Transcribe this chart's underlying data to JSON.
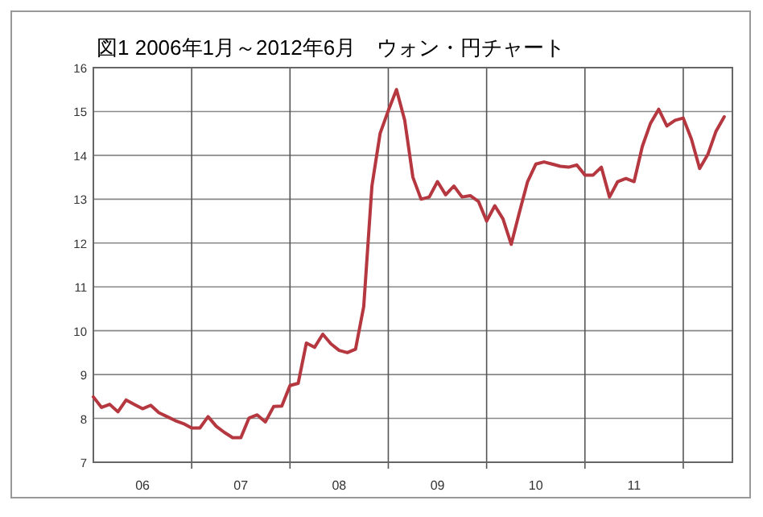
{
  "chart_data": {
    "type": "line",
    "title": "図1 2006年1月～2012年6月　ウォン・円チャート",
    "x": [
      "2006-01",
      "2006-02",
      "2006-03",
      "2006-04",
      "2006-05",
      "2006-06",
      "2006-07",
      "2006-08",
      "2006-09",
      "2006-10",
      "2006-11",
      "2006-12",
      "2007-01",
      "2007-02",
      "2007-03",
      "2007-04",
      "2007-05",
      "2007-06",
      "2007-07",
      "2007-08",
      "2007-09",
      "2007-10",
      "2007-11",
      "2007-12",
      "2008-01",
      "2008-02",
      "2008-03",
      "2008-04",
      "2008-05",
      "2008-06",
      "2008-07",
      "2008-08",
      "2008-09",
      "2008-10",
      "2008-11",
      "2008-12",
      "2009-01",
      "2009-02",
      "2009-03",
      "2009-04",
      "2009-05",
      "2009-06",
      "2009-07",
      "2009-08",
      "2009-09",
      "2009-10",
      "2009-11",
      "2009-12",
      "2010-01",
      "2010-02",
      "2010-03",
      "2010-04",
      "2010-05",
      "2010-06",
      "2010-07",
      "2010-08",
      "2010-09",
      "2010-10",
      "2010-11",
      "2010-12",
      "2011-01",
      "2011-02",
      "2011-03",
      "2011-04",
      "2011-05",
      "2011-06",
      "2011-07",
      "2011-08",
      "2011-09",
      "2011-10",
      "2011-11",
      "2011-12",
      "2012-01",
      "2012-02",
      "2012-03",
      "2012-04",
      "2012-05",
      "2012-06"
    ],
    "series": [
      {
        "color": "#b5373f",
        "values": [
          8.49,
          8.25,
          8.32,
          8.15,
          8.42,
          8.32,
          8.22,
          8.3,
          8.13,
          8.04,
          7.95,
          7.88,
          7.78,
          7.78,
          8.04,
          7.82,
          7.68,
          7.56,
          7.56,
          8.01,
          8.08,
          7.92,
          8.27,
          8.28,
          8.75,
          8.8,
          9.72,
          9.62,
          9.92,
          9.7,
          9.55,
          9.5,
          9.58,
          10.55,
          13.3,
          14.5,
          15.02,
          15.5,
          14.8,
          13.5,
          13.0,
          13.05,
          13.4,
          13.1,
          13.3,
          13.05,
          13.08,
          12.95,
          12.5,
          12.85,
          12.55,
          11.97,
          12.7,
          13.4,
          13.8,
          13.85,
          13.8,
          13.75,
          13.73,
          13.78,
          13.55,
          13.55,
          13.73,
          13.05,
          13.4,
          13.47,
          13.4,
          14.2,
          14.73,
          15.05,
          14.67,
          14.8,
          14.85,
          14.37,
          13.7,
          14.02,
          14.55,
          14.88
        ]
      }
    ],
    "xlim": [
      "2006-01",
      "2012-07"
    ],
    "xticks": [
      {
        "value": "2006-07",
        "label": "06"
      },
      {
        "value": "2007-01",
        "label": null
      },
      {
        "value": "2007-07",
        "label": "07"
      },
      {
        "value": "2008-01",
        "label": null
      },
      {
        "value": "2008-07",
        "label": "08"
      },
      {
        "value": "2009-01",
        "label": null
      },
      {
        "value": "2009-07",
        "label": "09"
      },
      {
        "value": "2010-01",
        "label": null
      },
      {
        "value": "2010-07",
        "label": "10"
      },
      {
        "value": "2011-01",
        "label": null
      },
      {
        "value": "2011-07",
        "label": "11"
      },
      {
        "value": "2012-01",
        "label": null
      }
    ],
    "ylim": [
      7,
      16
    ],
    "yticks": [
      7,
      8,
      9,
      10,
      11,
      12,
      13,
      14,
      15,
      16
    ],
    "grid": true,
    "marker": "none",
    "line_style": "solid"
  }
}
